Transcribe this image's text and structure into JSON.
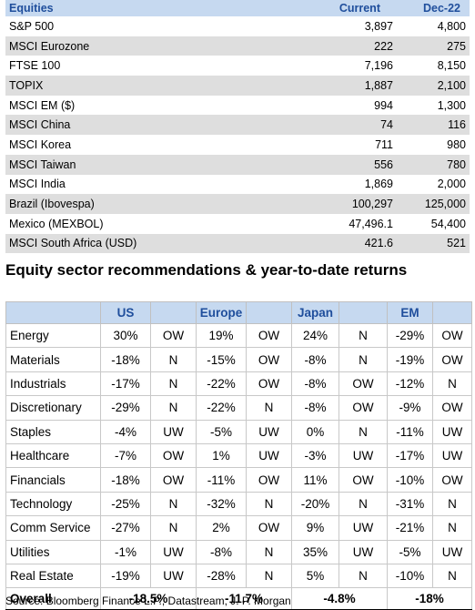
{
  "equities": {
    "headers": [
      "Equities",
      "Current",
      "Dec-22"
    ],
    "rows": [
      [
        "S&P 500",
        "3,897",
        "4,800"
      ],
      [
        "MSCI Eurozone",
        "222",
        "275"
      ],
      [
        "FTSE 100",
        "7,196",
        "8,150"
      ],
      [
        "TOPIX",
        "1,887",
        "2,100"
      ],
      [
        "MSCI EM ($)",
        "994",
        "1,300"
      ],
      [
        "MSCI China",
        "74",
        "116"
      ],
      [
        "MSCI Korea",
        "711",
        "980"
      ],
      [
        "MSCI Taiwan",
        "556",
        "780"
      ],
      [
        "MSCI India",
        "1,869",
        "2,000"
      ],
      [
        "Brazil (Ibovespa)",
        "100,297",
        "125,000"
      ],
      [
        "Mexico (MEXBOL)",
        "47,496.1",
        "54,400"
      ],
      [
        "MSCI South Africa (USD)",
        "421.6",
        "521"
      ]
    ]
  },
  "sectors": {
    "title": "Equity sector recommendations & year-to-date returns",
    "headers": [
      "US",
      "Europe",
      "Japan",
      "EM"
    ],
    "rows": [
      [
        "Energy",
        "30%",
        "OW",
        "19%",
        "OW",
        "24%",
        "N",
        "-29%",
        "OW"
      ],
      [
        "Materials",
        "-18%",
        "N",
        "-15%",
        "OW",
        "-8%",
        "N",
        "-19%",
        "OW"
      ],
      [
        "Industrials",
        "-17%",
        "N",
        "-22%",
        "OW",
        "-8%",
        "OW",
        "-12%",
        "N"
      ],
      [
        "Discretionary",
        "-29%",
        "N",
        "-22%",
        "N",
        "-8%",
        "OW",
        "-9%",
        "OW"
      ],
      [
        "Staples",
        "-4%",
        "UW",
        "-5%",
        "UW",
        "0%",
        "N",
        "-11%",
        "UW"
      ],
      [
        "Healthcare",
        "-7%",
        "OW",
        "1%",
        "UW",
        "-3%",
        "UW",
        "-17%",
        "UW"
      ],
      [
        "Financials",
        "-18%",
        "OW",
        "-11%",
        "OW",
        "11%",
        "OW",
        "-10%",
        "OW"
      ],
      [
        "Technology",
        "-25%",
        "N",
        "-32%",
        "N",
        "-20%",
        "N",
        "-31%",
        "N"
      ],
      [
        "Comm Service",
        "-27%",
        "N",
        "2%",
        "OW",
        "9%",
        "UW",
        "-21%",
        "N"
      ],
      [
        "Utilities",
        "-1%",
        "UW",
        "-8%",
        "N",
        "35%",
        "UW",
        "-5%",
        "UW"
      ],
      [
        "Real Estate",
        "-19%",
        "UW",
        "-28%",
        "N",
        "5%",
        "N",
        "-10%",
        "N"
      ]
    ],
    "overall": [
      "Overall",
      "-18.5%",
      "-11.7%",
      "-4.8%",
      "-18%"
    ]
  },
  "source": "Source: Bloomberg Finance L.P., Datastream, J. P. Morgan"
}
